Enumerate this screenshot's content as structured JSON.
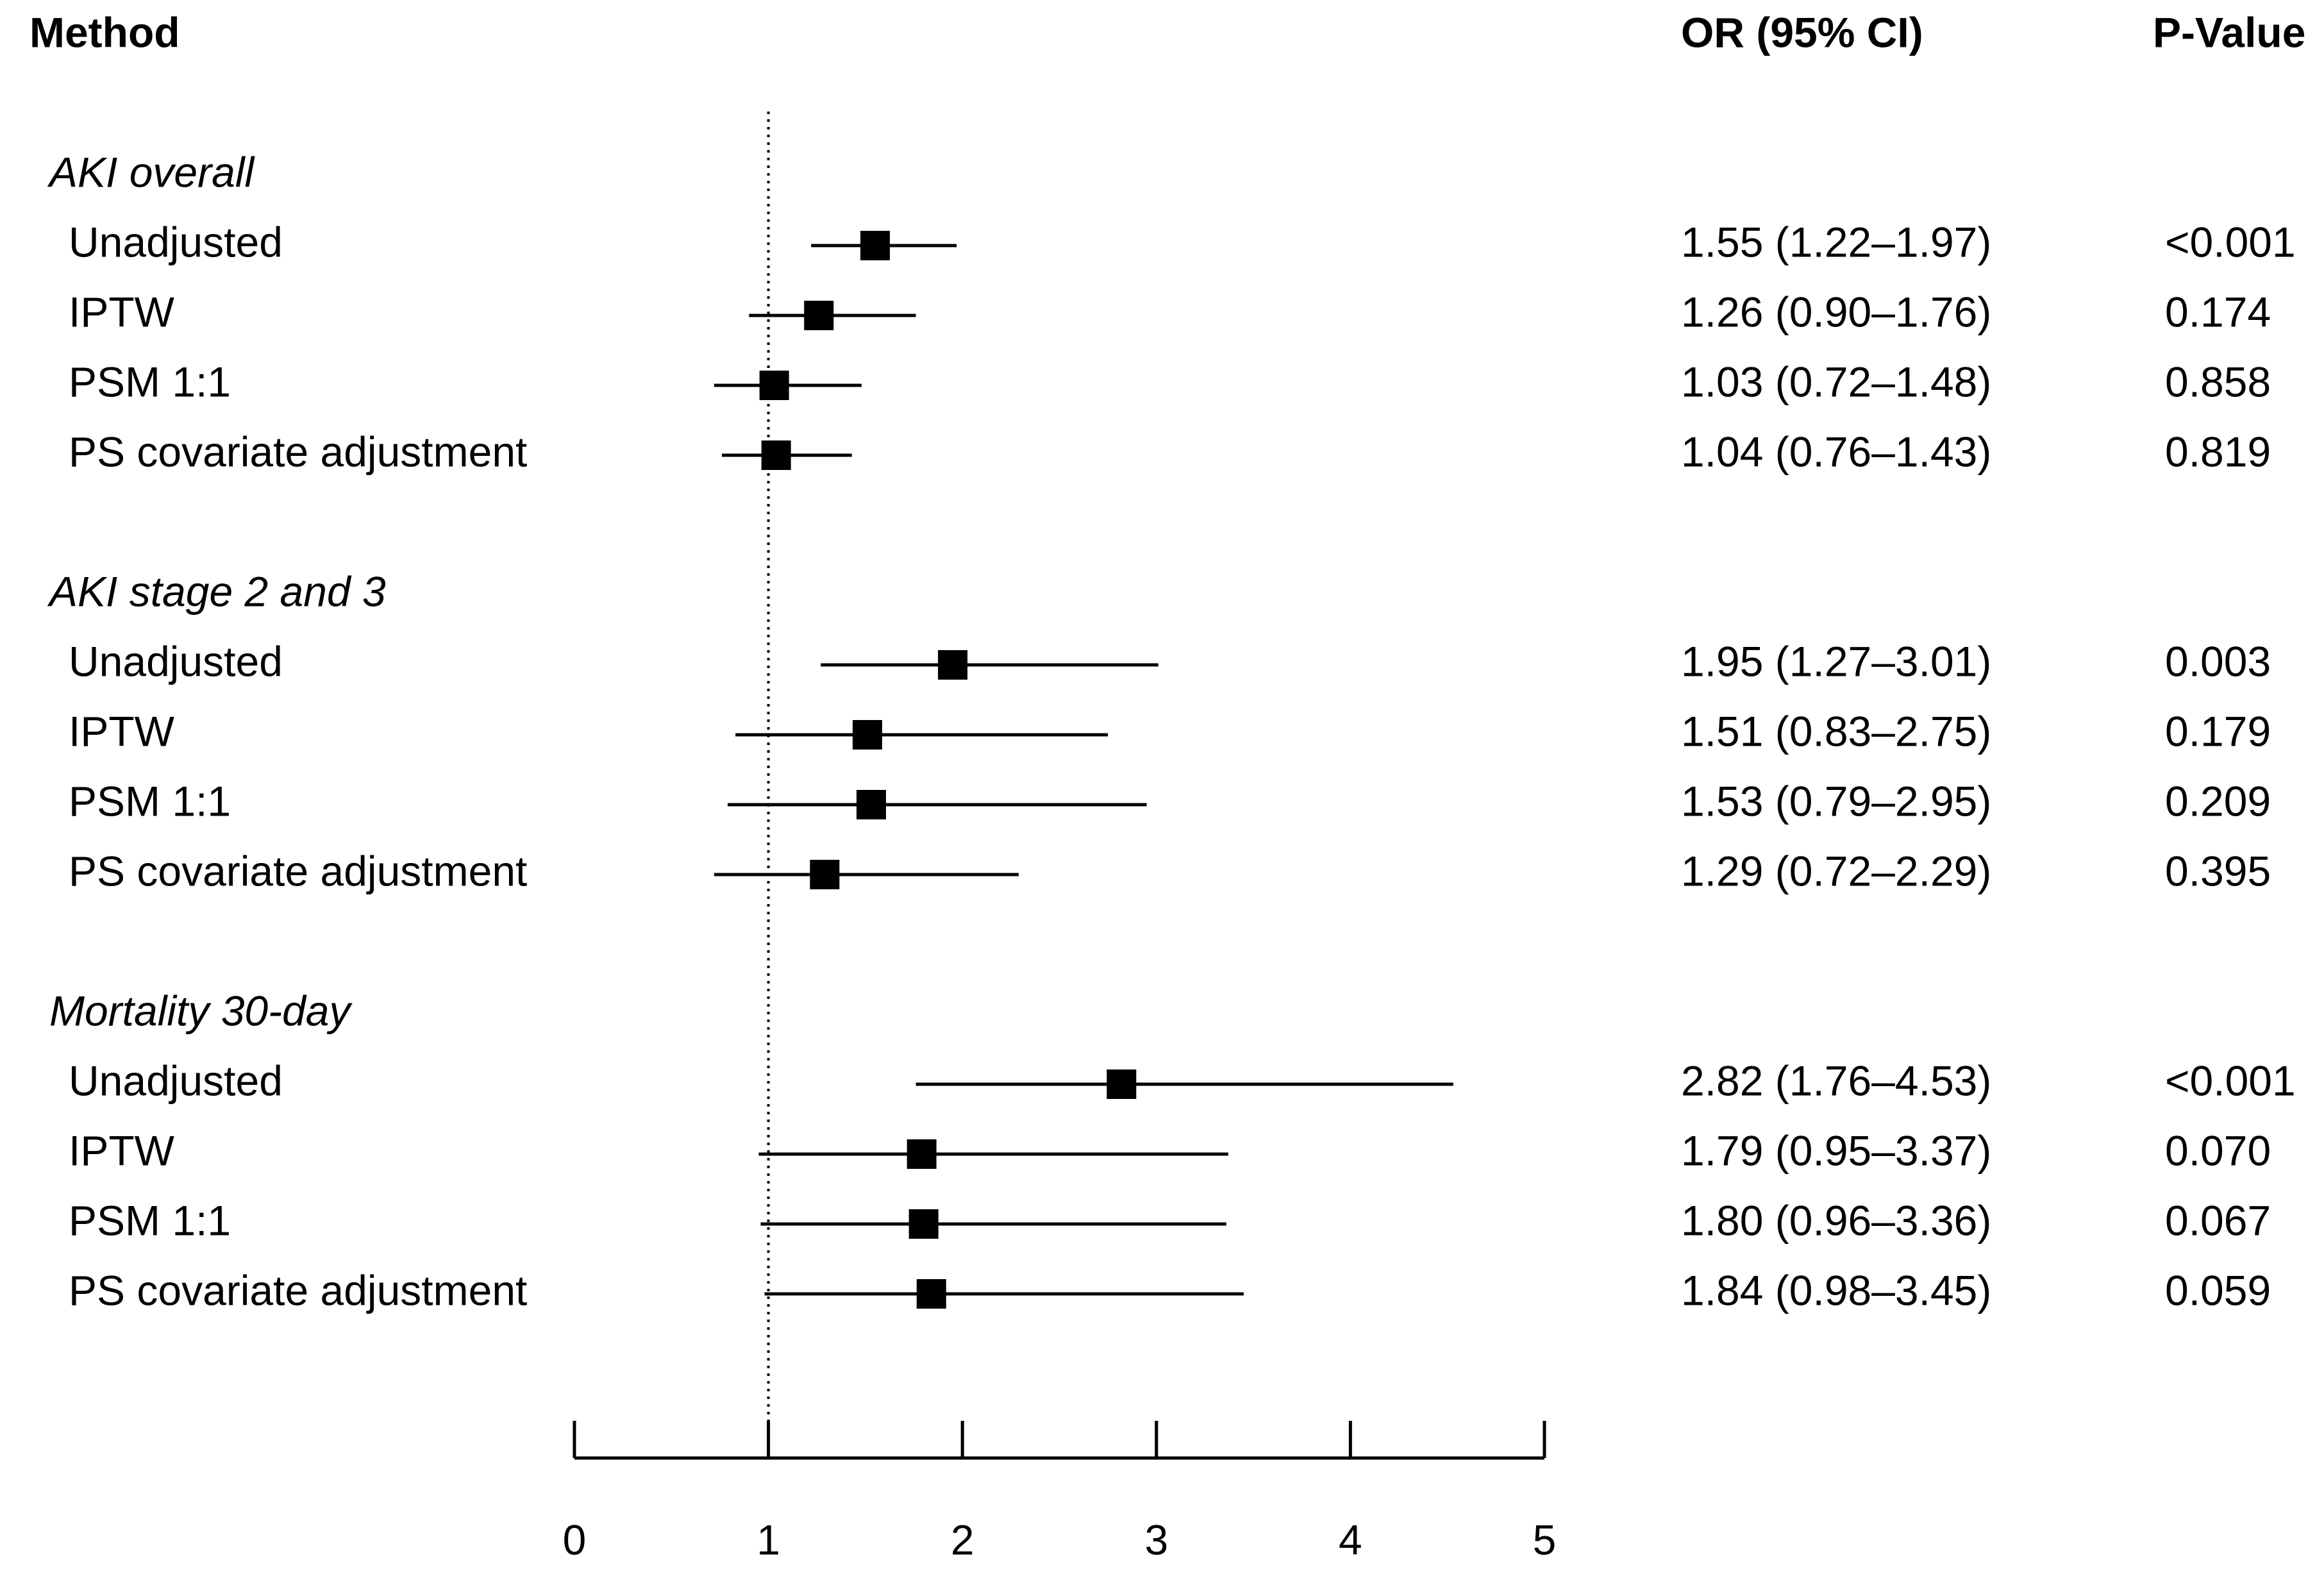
{
  "chart_data": {
    "type": "forest",
    "column_headers": {
      "method": "Method",
      "estimate": "OR (95% CI)",
      "p": "P-Value"
    },
    "xlim": [
      0,
      5
    ],
    "xticks": [
      0,
      1,
      2,
      3,
      4,
      5
    ],
    "reference_line": 1,
    "groups": [
      {
        "name": "AKI overall",
        "rows": [
          {
            "label": "Unadjusted",
            "or": 1.55,
            "lower": 1.22,
            "upper": 1.97,
            "ci_label": "1.55 (1.22–1.97)",
            "p": "<0.001"
          },
          {
            "label": "IPTW",
            "or": 1.26,
            "lower": 0.9,
            "upper": 1.76,
            "ci_label": "1.26 (0.90–1.76)",
            "p": "0.174"
          },
          {
            "label": "PSM 1:1",
            "or": 1.03,
            "lower": 0.72,
            "upper": 1.48,
            "ci_label": "1.03 (0.72–1.48)",
            "p": "0.858"
          },
          {
            "label": "PS covariate adjustment",
            "or": 1.04,
            "lower": 0.76,
            "upper": 1.43,
            "ci_label": "1.04 (0.76–1.43)",
            "p": "0.819"
          }
        ]
      },
      {
        "name": "AKI stage 2 and 3",
        "rows": [
          {
            "label": "Unadjusted",
            "or": 1.95,
            "lower": 1.27,
            "upper": 3.01,
            "ci_label": "1.95 (1.27–3.01)",
            "p": "0.003"
          },
          {
            "label": "IPTW",
            "or": 1.51,
            "lower": 0.83,
            "upper": 2.75,
            "ci_label": "1.51 (0.83–2.75)",
            "p": "0.179"
          },
          {
            "label": "PSM 1:1",
            "or": 1.53,
            "lower": 0.79,
            "upper": 2.95,
            "ci_label": "1.53 (0.79–2.95)",
            "p": "0.209"
          },
          {
            "label": "PS covariate adjustment",
            "or": 1.29,
            "lower": 0.72,
            "upper": 2.29,
            "ci_label": "1.29 (0.72–2.29)",
            "p": "0.395"
          }
        ]
      },
      {
        "name": "Mortality 30-day",
        "rows": [
          {
            "label": "Unadjusted",
            "or": 2.82,
            "lower": 1.76,
            "upper": 4.53,
            "ci_label": "2.82 (1.76–4.53)",
            "p": "<0.001"
          },
          {
            "label": "IPTW",
            "or": 1.79,
            "lower": 0.95,
            "upper": 3.37,
            "ci_label": "1.79 (0.95–3.37)",
            "p": "0.070"
          },
          {
            "label": "PSM 1:1",
            "or": 1.8,
            "lower": 0.96,
            "upper": 3.36,
            "ci_label": "1.80 (0.96–3.36)",
            "p": "0.067"
          },
          {
            "label": "PS covariate adjustment",
            "or": 1.84,
            "lower": 0.98,
            "upper": 3.45,
            "ci_label": "1.84 (0.98–3.45)",
            "p": "0.059"
          }
        ]
      }
    ]
  }
}
